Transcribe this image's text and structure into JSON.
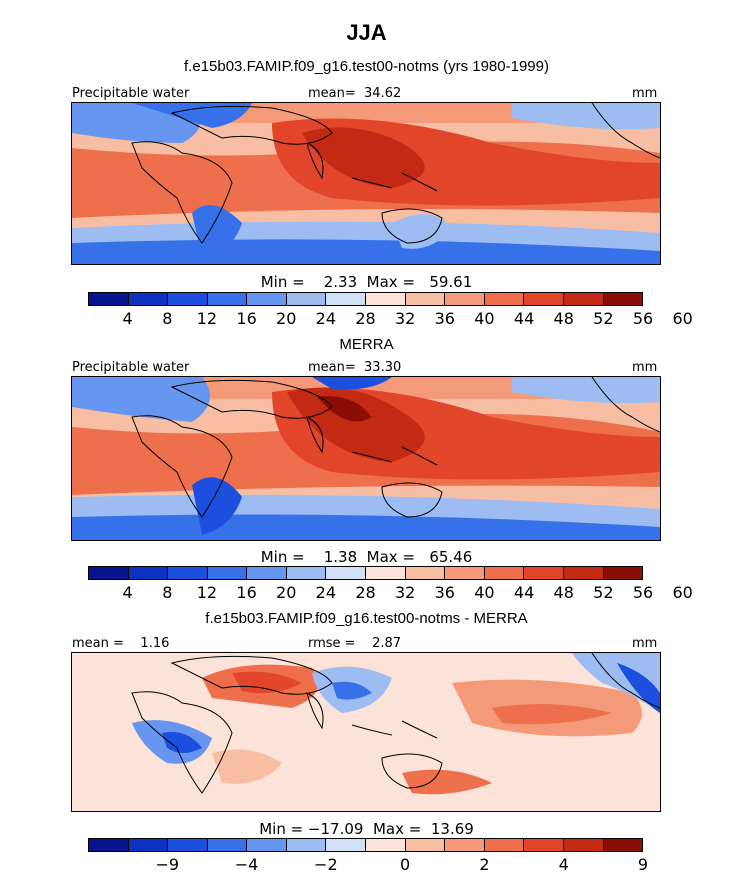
{
  "title": "JJA",
  "palette": [
    "#08138f",
    "#0d32c2",
    "#1d4fdf",
    "#3771ea",
    "#6696ef",
    "#9dbdf2",
    "#d0e0f6",
    "#fbe3d9",
    "#f8bea4",
    "#f49a78",
    "#ee6f4c",
    "#e1462a",
    "#c22a14",
    "#8c0d07"
  ],
  "panels": [
    {
      "title": "f.e15b03.FAMIP.f09_g16.test00-notms (yrs 1980-1999)",
      "left_label": "Precipitable water",
      "center_label": "mean=  34.62",
      "units": "mm",
      "min_max_text": "Min =    2.33  Max =   59.61",
      "colorbar_ticks": [
        "4",
        "8",
        "12",
        "16",
        "20",
        "24",
        "28",
        "32",
        "36",
        "40",
        "44",
        "48",
        "52",
        "56",
        "60"
      ]
    },
    {
      "title": "MERRA",
      "left_label": "Precipitable water",
      "center_label": "mean=  33.30",
      "units": "mm",
      "min_max_text": "Min =    1.38  Max =   65.46",
      "colorbar_ticks": [
        "4",
        "8",
        "12",
        "16",
        "20",
        "24",
        "28",
        "32",
        "36",
        "40",
        "44",
        "48",
        "52",
        "56",
        "60"
      ]
    },
    {
      "title": "f.e15b03.FAMIP.f09_g16.test00-notms - MERRA",
      "left_label": "mean =    1.16",
      "center_label": "rmse =    2.87",
      "units": "mm",
      "min_max_text": "Min = −17.09  Max =  13.69",
      "colorbar_ticks": [
        "−9",
        "−4",
        "−2",
        "0",
        "2",
        "4",
        "9"
      ]
    }
  ],
  "chart_data": [
    {
      "type": "heatmap",
      "title": "f.e15b03.FAMIP.f09_g16.test00-notms (yrs 1980-1999)",
      "variable": "Precipitable water",
      "units": "mm",
      "mean": 34.62,
      "min": 2.33,
      "max": 59.61,
      "contour_levels": [
        4,
        8,
        12,
        16,
        20,
        24,
        28,
        32,
        36,
        40,
        44,
        48,
        52,
        56,
        60
      ]
    },
    {
      "type": "heatmap",
      "title": "MERRA",
      "variable": "Precipitable water",
      "units": "mm",
      "mean": 33.3,
      "min": 1.38,
      "max": 65.46,
      "contour_levels": [
        4,
        8,
        12,
        16,
        20,
        24,
        28,
        32,
        36,
        40,
        44,
        48,
        52,
        56,
        60
      ]
    },
    {
      "type": "heatmap",
      "title": "f.e15b03.FAMIP.f09_g16.test00-notms - MERRA",
      "units": "mm",
      "mean": 1.16,
      "rmse": 2.87,
      "min": -17.09,
      "max": 13.69,
      "contour_levels": [
        -9,
        -4,
        -2,
        0,
        2,
        4,
        9
      ]
    }
  ]
}
